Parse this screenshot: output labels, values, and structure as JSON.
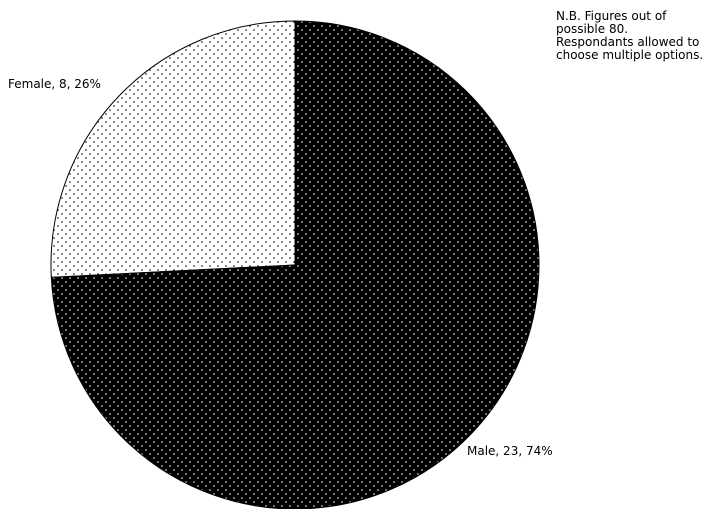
{
  "chart_data": {
    "type": "pie",
    "title": "",
    "slices": [
      {
        "label": "Female",
        "value": 8,
        "percent": 26,
        "display": "Female, 8, 26%",
        "fill": "white-dotted"
      },
      {
        "label": "Male",
        "value": 23,
        "percent": 74,
        "display": "Male, 23, 74%",
        "fill": "black-dotted"
      }
    ],
    "start_angle_deg": 0,
    "direction": "counterclockwise",
    "legend": "none",
    "colors": {
      "female_bg": "#ffffff",
      "female_dot": "#000000",
      "male_bg": "#000000",
      "male_dot": "#ffffff",
      "outline": "#000000"
    }
  },
  "note": {
    "lines": [
      "N.B. Figures out of",
      "possible 80.",
      "Respondants allowed to",
      "choose multiple options."
    ]
  }
}
